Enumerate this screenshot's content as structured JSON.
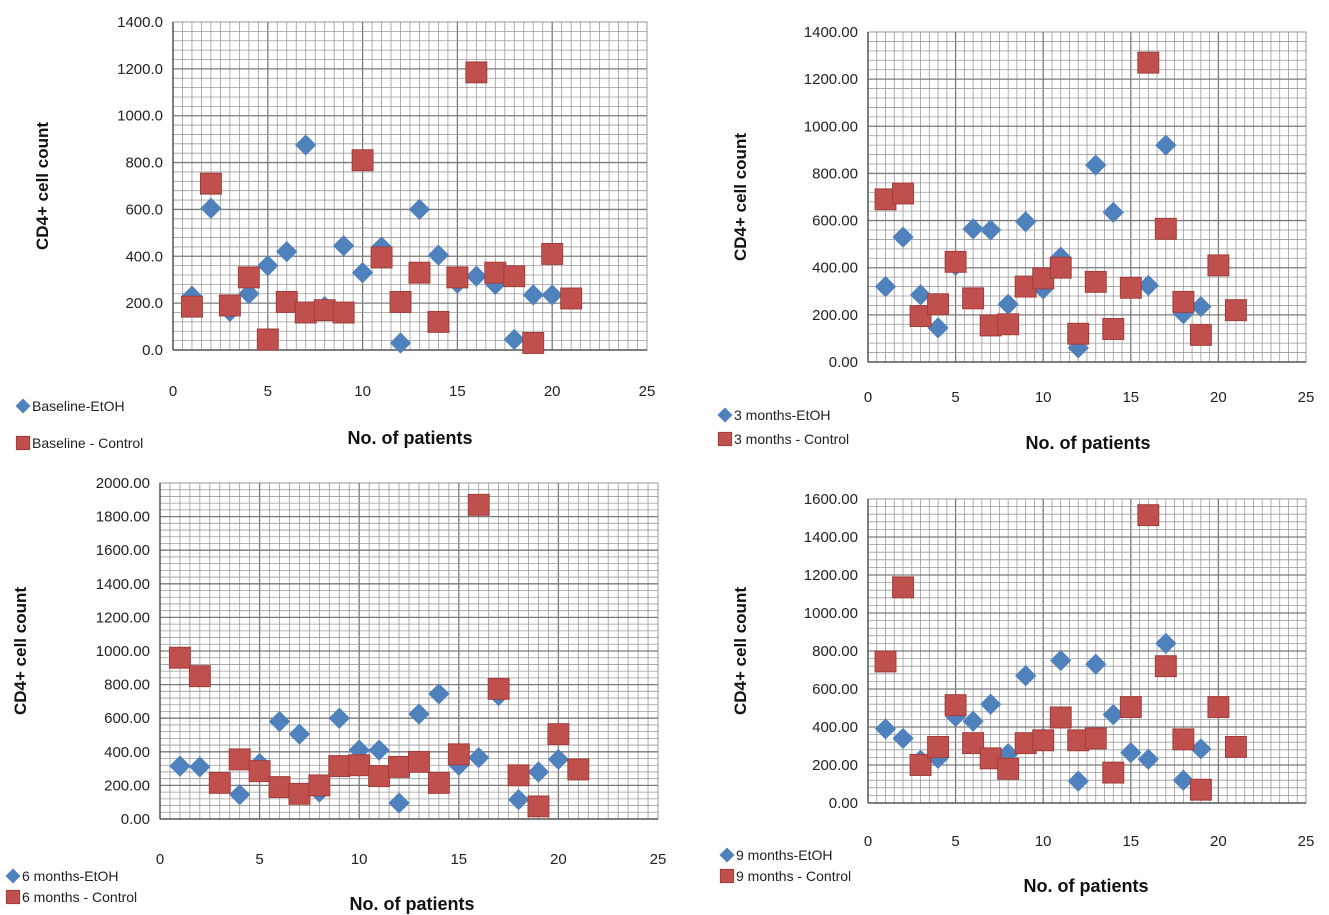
{
  "colors": {
    "etoh": "#4f81bd",
    "control": "#c0504d",
    "grid": "#9a9a9a",
    "gridMajor": "#7a7a7a",
    "axis": "#555555"
  },
  "chart_data": [
    {
      "type": "scatter",
      "title": "",
      "xlabel": "No. of patients",
      "ylabel": "CD4+ cell count",
      "xlim": [
        0,
        25
      ],
      "ylim": [
        0,
        1400
      ],
      "x_ticks": [
        "0",
        "5",
        "10",
        "15",
        "20",
        "25"
      ],
      "y_ticks": [
        "0.0",
        "200.0",
        "400.0",
        "600.0",
        "800.0",
        "1000.0",
        "1200.0",
        "1400.0"
      ],
      "grid": true,
      "legend": "bottom-left",
      "series": [
        {
          "name": "Baseline-EtOH",
          "marker": "diamond",
          "x": [
            1,
            2,
            3,
            4,
            5,
            6,
            7,
            8,
            9,
            10,
            11,
            12,
            13,
            14,
            15,
            16,
            17,
            18,
            19,
            20
          ],
          "y": [
            230,
            605,
            165,
            240,
            360,
            420,
            875,
            185,
            445,
            330,
            440,
            30,
            600,
            405,
            285,
            315,
            280,
            45,
            235,
            235
          ]
        },
        {
          "name": "Baseline - Control",
          "marker": "square",
          "x": [
            1,
            2,
            3,
            4,
            5,
            6,
            7,
            8,
            9,
            10,
            11,
            12,
            13,
            14,
            15,
            16,
            17,
            18,
            19,
            20,
            21
          ],
          "y": [
            185,
            710,
            190,
            310,
            45,
            205,
            160,
            170,
            160,
            810,
            395,
            205,
            330,
            120,
            310,
            1185,
            330,
            315,
            30,
            410,
            220
          ]
        }
      ]
    },
    {
      "type": "scatter",
      "title": "",
      "xlabel": "No. of patients",
      "ylabel": "CD4+ cell count",
      "xlim": [
        0,
        25
      ],
      "ylim": [
        0,
        1400
      ],
      "x_ticks": [
        "0",
        "5",
        "10",
        "15",
        "20",
        "25"
      ],
      "y_ticks": [
        "0.00",
        "200.00",
        "400.00",
        "600.00",
        "800.00",
        "1000.00",
        "1200.00",
        "1400.00"
      ],
      "grid": true,
      "legend": "bottom-left",
      "series": [
        {
          "name": "3 months-EtOH",
          "marker": "diamond",
          "x": [
            1,
            2,
            3,
            4,
            5,
            6,
            7,
            8,
            9,
            10,
            11,
            12,
            13,
            14,
            15,
            16,
            17,
            18,
            19
          ],
          "y": [
            320,
            530,
            285,
            145,
            410,
            565,
            560,
            245,
            595,
            310,
            445,
            60,
            835,
            635,
            320,
            325,
            920,
            205,
            235
          ]
        },
        {
          "name": "3 months - Control",
          "marker": "square",
          "x": [
            1,
            2,
            3,
            4,
            5,
            6,
            7,
            8,
            9,
            10,
            11,
            12,
            13,
            14,
            15,
            16,
            17,
            18,
            19,
            20,
            21
          ],
          "y": [
            690,
            715,
            195,
            245,
            425,
            270,
            155,
            160,
            320,
            355,
            400,
            120,
            340,
            140,
            315,
            1270,
            565,
            255,
            115,
            410,
            220
          ]
        }
      ]
    },
    {
      "type": "scatter",
      "title": "",
      "xlabel": "No. of patients",
      "ylabel": "CD4+ cell count",
      "xlim": [
        0,
        25
      ],
      "ylim": [
        0,
        2000
      ],
      "x_ticks": [
        "0",
        "5",
        "10",
        "15",
        "20",
        "25"
      ],
      "y_ticks": [
        "0.00",
        "200.00",
        "400.00",
        "600.00",
        "800.00",
        "1000.00",
        "1200.00",
        "1400.00",
        "1600.00",
        "1800.00",
        "2000.00"
      ],
      "grid": true,
      "legend": "bottom-left",
      "series": [
        {
          "name": "6 months-EtOH",
          "marker": "diamond",
          "x": [
            1,
            2,
            3,
            4,
            5,
            6,
            7,
            8,
            9,
            10,
            11,
            12,
            13,
            14,
            15,
            16,
            17,
            18,
            19,
            20
          ],
          "y": [
            315,
            310,
            215,
            145,
            330,
            580,
            505,
            160,
            600,
            410,
            410,
            95,
            625,
            745,
            320,
            365,
            735,
            115,
            280,
            355
          ]
        },
        {
          "name": "6 months - Control",
          "marker": "square",
          "x": [
            1,
            2,
            3,
            4,
            5,
            6,
            7,
            8,
            9,
            10,
            11,
            12,
            13,
            14,
            15,
            16,
            17,
            18,
            19,
            20,
            21
          ],
          "y": [
            960,
            850,
            215,
            355,
            285,
            190,
            150,
            200,
            315,
            320,
            255,
            310,
            340,
            215,
            385,
            1870,
            775,
            260,
            75,
            505,
            295
          ]
        }
      ]
    },
    {
      "type": "scatter",
      "title": "",
      "xlabel": "No. of patients",
      "ylabel": "CD4+ cell count",
      "xlim": [
        0,
        25
      ],
      "ylim": [
        0,
        1600
      ],
      "x_ticks": [
        "0",
        "5",
        "10",
        "15",
        "20",
        "25"
      ],
      "y_ticks": [
        "0.00",
        "200.00",
        "400.00",
        "600.00",
        "800.00",
        "1000.00",
        "1200.00",
        "1400.00",
        "1600.00"
      ],
      "grid": true,
      "legend": "bottom-left",
      "series": [
        {
          "name": "9 months-EtOH",
          "marker": "diamond",
          "x": [
            1,
            2,
            3,
            4,
            5,
            6,
            7,
            8,
            9,
            10,
            11,
            12,
            13,
            14,
            15,
            16,
            17,
            18,
            19
          ],
          "y": [
            390,
            340,
            225,
            235,
            455,
            430,
            520,
            260,
            670,
            340,
            750,
            115,
            730,
            465,
            265,
            230,
            840,
            120,
            285
          ]
        },
        {
          "name": "9 months - Control",
          "marker": "square",
          "x": [
            1,
            2,
            3,
            4,
            5,
            6,
            7,
            8,
            9,
            10,
            11,
            12,
            13,
            14,
            15,
            16,
            17,
            18,
            19,
            20,
            21
          ],
          "y": [
            745,
            1135,
            200,
            295,
            515,
            315,
            235,
            180,
            315,
            330,
            450,
            330,
            340,
            160,
            505,
            1515,
            720,
            335,
            70,
            505,
            295
          ]
        }
      ]
    }
  ]
}
